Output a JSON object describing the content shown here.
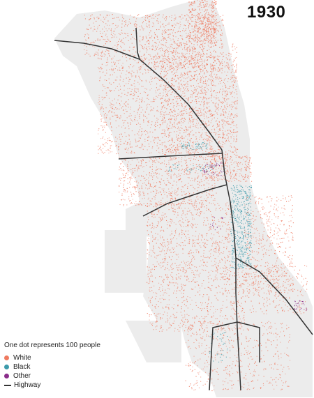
{
  "title": "1930",
  "legend": {
    "note": "One dot represents 100 people",
    "items": [
      {
        "label": "White",
        "color": "#ef7a60",
        "kind": "dot"
      },
      {
        "label": "Black",
        "color": "#3c9aaa",
        "kind": "dot"
      },
      {
        "label": "Other",
        "color": "#8a2d8a",
        "kind": "dot"
      },
      {
        "label": "Highway",
        "color": "#333333",
        "kind": "line"
      }
    ]
  },
  "colors": {
    "background": "#ffffff",
    "tract_fill": "#ececec",
    "white": "#ef7a60",
    "black": "#3c9aaa",
    "other": "#8a2d8a",
    "highway": "#333333"
  }
}
